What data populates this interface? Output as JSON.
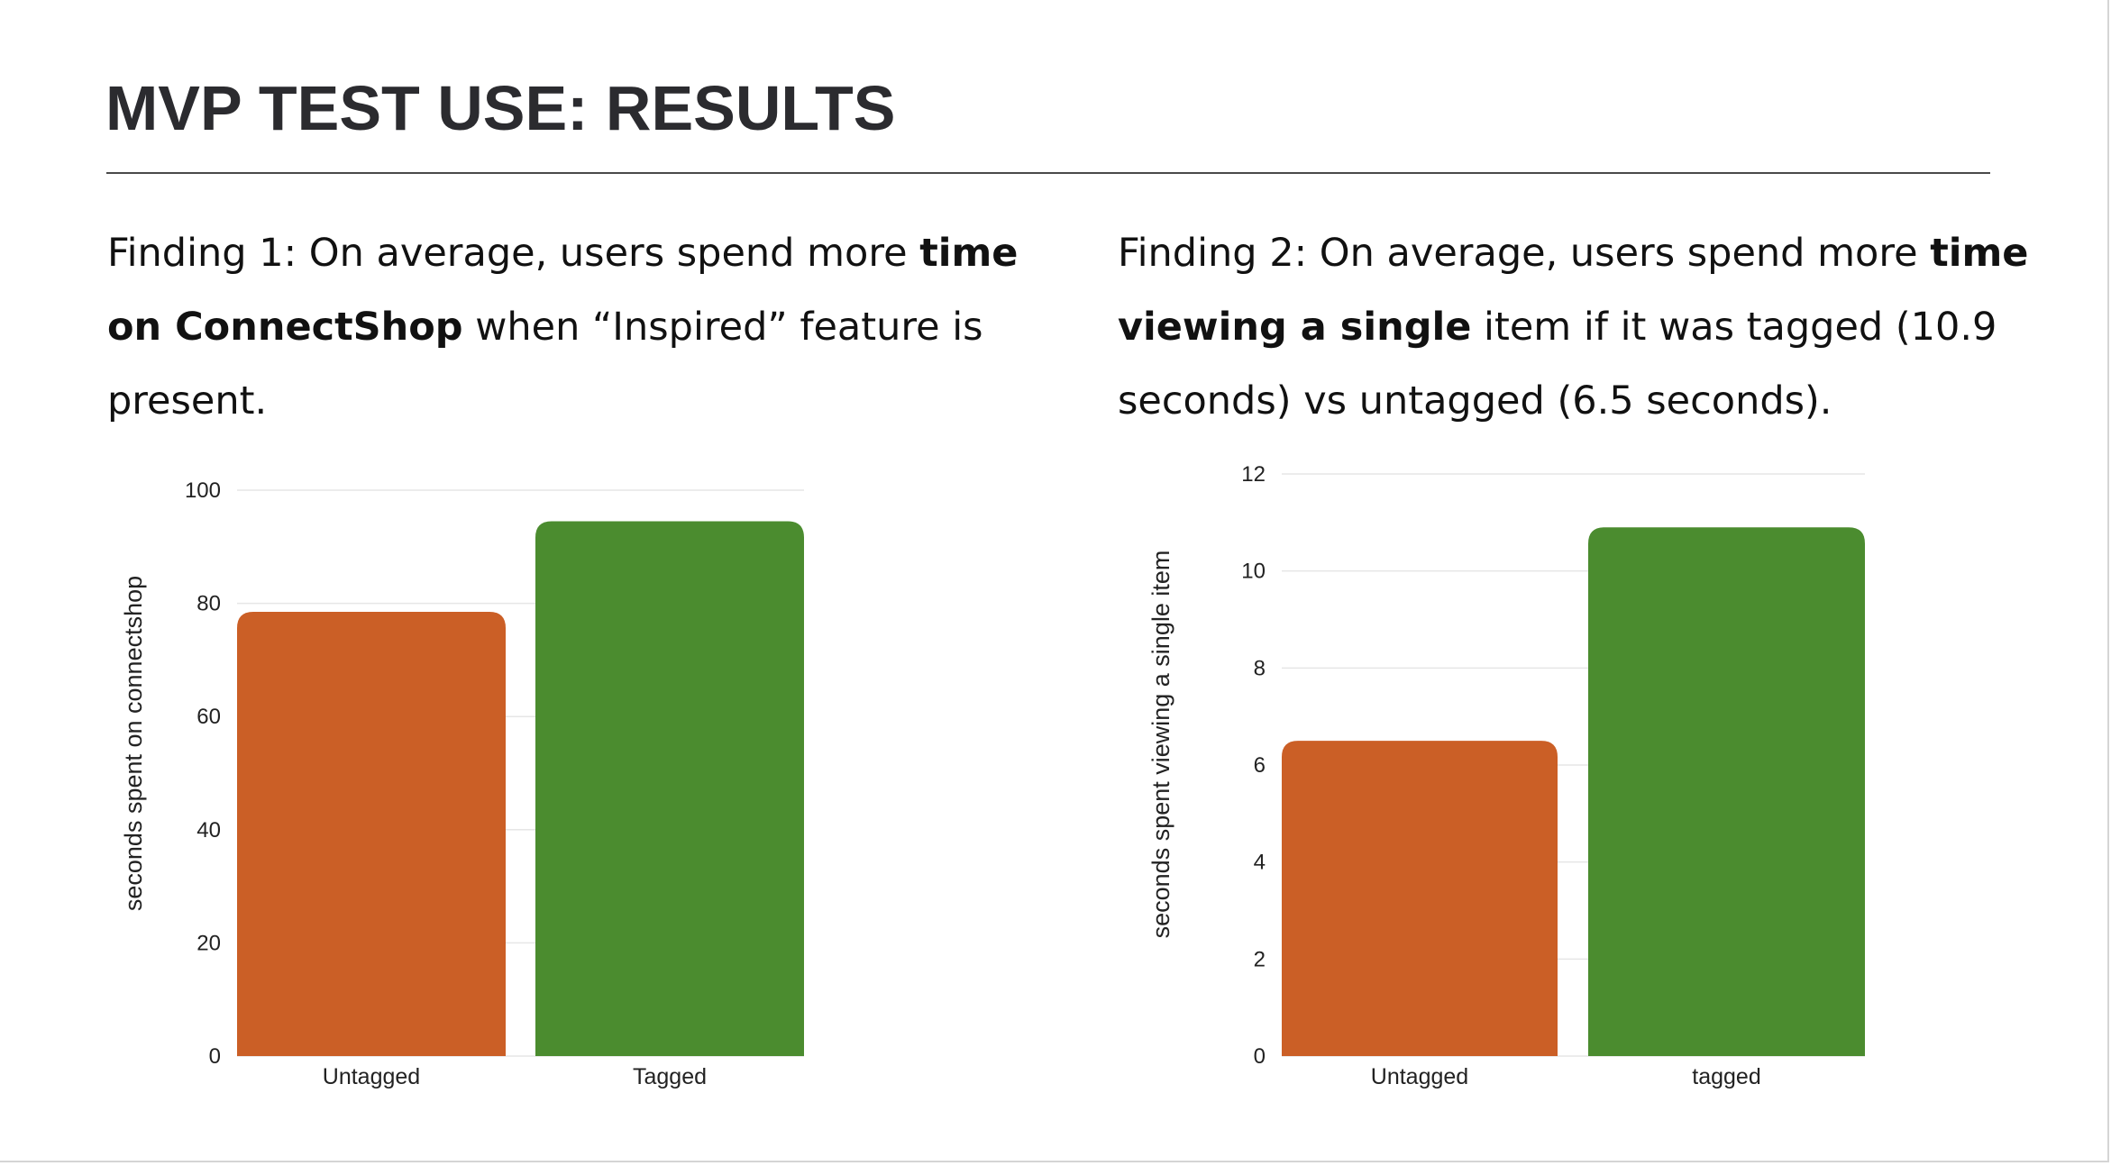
{
  "title": "MVP TEST USE: RESULTS",
  "findings": [
    {
      "lead": "Finding 1: On average, users spend more ",
      "bold": "time on ConnectShop",
      "tail": " when “Inspired” feature is present."
    },
    {
      "lead": "Finding 2: On average, users spend more ",
      "bold": "time viewing a single",
      "tail": " item if it was tagged (10.9 seconds) vs untagged (6.5 seconds)."
    }
  ],
  "chart_data": [
    {
      "type": "bar",
      "categories": [
        "Untagged",
        "Tagged"
      ],
      "values": [
        78.5,
        94.5
      ],
      "colors": [
        "#cb5f26",
        "#4b8c2f"
      ],
      "ylabel": "seconds spent on connectshop",
      "ylim": [
        0,
        100
      ],
      "yticks": [
        0,
        20,
        40,
        60,
        80,
        100
      ],
      "ytick_labels": [
        "0",
        "20",
        "40",
        "60",
        "80",
        "100"
      ],
      "grid": true
    },
    {
      "type": "bar",
      "categories": [
        "Untagged",
        "tagged"
      ],
      "values": [
        6.5,
        10.9
      ],
      "colors": [
        "#cb5f26",
        "#4b8c2f"
      ],
      "ylabel": "seconds spent viewing a single item",
      "ylim": [
        0,
        12
      ],
      "yticks": [
        0,
        2,
        4,
        6,
        8,
        10,
        12
      ],
      "ytick_labels": [
        "0",
        "2",
        "4",
        "6",
        "8",
        "10",
        "12"
      ],
      "grid": true
    }
  ]
}
